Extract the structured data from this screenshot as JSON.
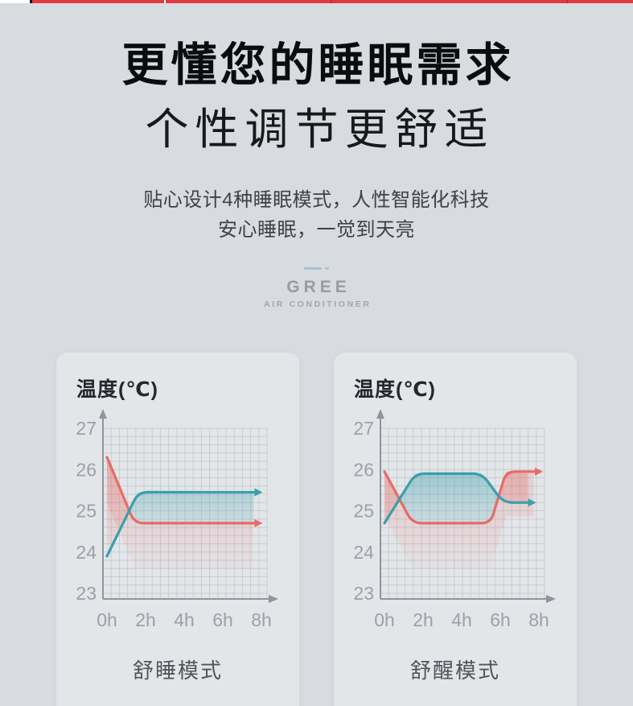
{
  "hero": {
    "title": "更懂您的睡眠需求",
    "subtitle": "个性调节更舒适",
    "desc_line1": "贴心设计4种睡眠模式，人性智能化科技",
    "desc_line2": "安心睡眠，一觉到天亮"
  },
  "brand": {
    "name": "GREE",
    "tagline": "AIR CONDITIONER"
  },
  "colors": {
    "page_bg": "#d8dbdf",
    "card_bg": "#e3e6e9",
    "accent_red_bar": "#e23940",
    "line_red": "#e76b65",
    "line_teal": "#3a9fab",
    "axis_gray": "#8f959c",
    "tick_label_gray": "#9ba1a9",
    "grid_gray": "#aab1b9",
    "dash_blue": "#a5c4d2"
  },
  "chart_data": [
    {
      "type": "line",
      "title": "温度(℃)",
      "mode_label": "舒睡模式",
      "ylabel": "温度(℃)",
      "ylim": [
        23,
        27
      ],
      "xlim_hours": [
        0,
        8
      ],
      "y_ticks": [
        "27",
        "26",
        "25",
        "24",
        "23"
      ],
      "y_tick_values": [
        27,
        26,
        25,
        24,
        23
      ],
      "x_ticks": [
        "0h",
        "2h",
        "4h",
        "6h",
        "8h"
      ],
      "x_tick_hours": [
        0,
        2,
        4,
        6,
        8
      ],
      "grid": "fine graph paper",
      "legend": "none",
      "series": [
        {
          "name": "set-temperature-red",
          "color": "#e76b65",
          "points": [
            [
              0,
              26.3
            ],
            [
              1.42,
              24.7
            ],
            [
              7.6,
              24.7
            ]
          ]
        },
        {
          "name": "room-temperature-teal",
          "color": "#3a9fab",
          "points": [
            [
              0,
              23.9
            ],
            [
              1.62,
              25.45
            ],
            [
              7.6,
              25.45
            ]
          ]
        }
      ]
    },
    {
      "type": "line",
      "title": "温度(℃)",
      "mode_label": "舒醒模式",
      "ylabel": "温度(℃)",
      "ylim": [
        23,
        27
      ],
      "xlim_hours": [
        0,
        8
      ],
      "y_ticks": [
        "27",
        "26",
        "25",
        "24",
        "23"
      ],
      "y_tick_values": [
        27,
        26,
        25,
        24,
        23
      ],
      "x_ticks": [
        "0h",
        "2h",
        "4h",
        "6h",
        "8h"
      ],
      "x_tick_hours": [
        0,
        2,
        4,
        6,
        8
      ],
      "grid": "fine graph paper",
      "legend": "none",
      "series": [
        {
          "name": "set-temperature-red",
          "color": "#e76b65",
          "points": [
            [
              0,
              25.95
            ],
            [
              1.45,
              24.7
            ],
            [
              5.5,
              24.7
            ],
            [
              6.3,
              25.95
            ],
            [
              7.75,
              25.95
            ]
          ]
        },
        {
          "name": "room-temperature-teal",
          "color": "#3a9fab",
          "points": [
            [
              0,
              24.7
            ],
            [
              1.6,
              25.9
            ],
            [
              5.05,
              25.9
            ],
            [
              6.15,
              25.2
            ],
            [
              7.4,
              25.2
            ]
          ]
        }
      ]
    }
  ]
}
